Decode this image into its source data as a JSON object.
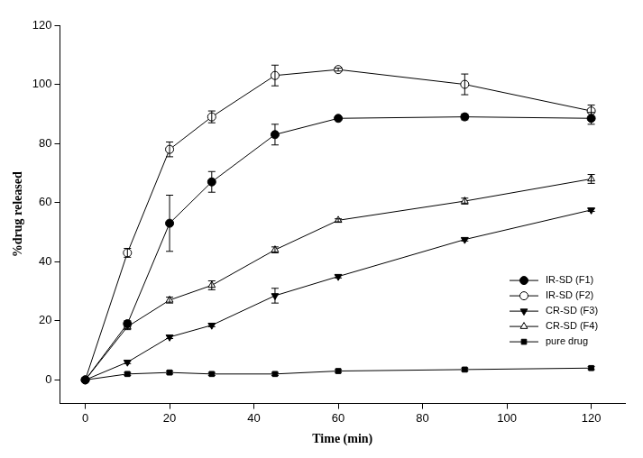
{
  "chart_data": {
    "type": "line",
    "x_label": "Time (min)",
    "y_label": "%drug released",
    "x": [
      0,
      10,
      20,
      30,
      45,
      60,
      90,
      120
    ],
    "xlim": [
      -6,
      128
    ],
    "xticks": [
      0,
      20,
      40,
      60,
      80,
      100,
      120
    ],
    "ylim": [
      -8,
      120
    ],
    "yticks": [
      0,
      20,
      40,
      60,
      80,
      100,
      120
    ],
    "grid": false,
    "legend": "lower right",
    "series": [
      {
        "name": "IR-SD (F1)",
        "color": "#000000",
        "marker": "circle",
        "values": [
          0,
          19,
          53,
          67,
          83,
          88.5,
          89,
          88.5
        ],
        "errors": [
          0,
          1,
          9.5,
          3.5,
          3.5,
          0.5,
          1,
          2
        ]
      },
      {
        "name": "IR-SD (F2)",
        "color": "#000000",
        "marker": "circle_open",
        "values": [
          0,
          43,
          78,
          89,
          103,
          105,
          100,
          91
        ],
        "errors": [
          0,
          1.5,
          2.5,
          2,
          3.5,
          0.5,
          3.5,
          2
        ]
      },
      {
        "name": "CR-SD (F3)",
        "color": "#000000",
        "marker": "triangle_down",
        "values": [
          0,
          6,
          14.5,
          18.5,
          28.5,
          35,
          47.5,
          57.5
        ],
        "errors": [
          0,
          0.5,
          0.5,
          0.5,
          2.5,
          0.5,
          0.5,
          0.5
        ]
      },
      {
        "name": "CR-SD (F4)",
        "color": "#000000",
        "marker": "triangle_open",
        "values": [
          0,
          18,
          27,
          32,
          44,
          54,
          60.5,
          68
        ],
        "errors": [
          0,
          1,
          1,
          1.5,
          1,
          0.5,
          1,
          1.5
        ]
      },
      {
        "name": "pure drug",
        "color": "#000000",
        "marker": "square",
        "values": [
          0,
          2,
          2.5,
          2,
          2,
          3,
          3.5,
          4
        ],
        "errors": [
          0,
          0.5,
          0.5,
          0.5,
          0.5,
          0.5,
          0.5,
          0.5
        ]
      }
    ]
  }
}
